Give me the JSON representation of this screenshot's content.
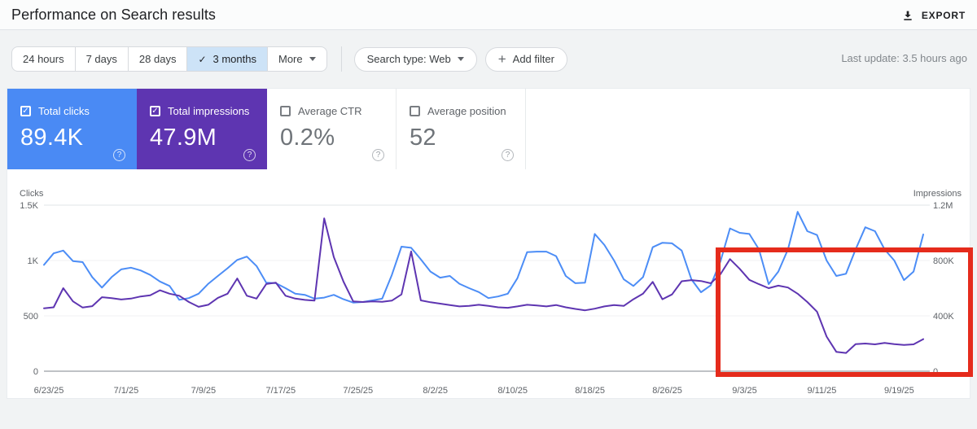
{
  "page": {
    "title": "Performance on Search results"
  },
  "header": {
    "export_label": "EXPORT"
  },
  "icons": {
    "check": "✓",
    "plus": "+",
    "question_mark": "?"
  },
  "toolbar": {
    "date_range_buttons": [
      {
        "label": "24 hours",
        "selected": false
      },
      {
        "label": "7 days",
        "selected": false
      },
      {
        "label": "28 days",
        "selected": false
      },
      {
        "label": "3 months",
        "selected": true
      },
      {
        "label": "More",
        "selected": false
      }
    ],
    "search_type_button": "Search type: Web",
    "add_filter_button": "Add filter",
    "last_update": "Last update: 3.5 hours ago"
  },
  "metric_cards": [
    {
      "label": "Total clicks",
      "value": "89.4K",
      "checked": true,
      "bg": "#4a8af4",
      "text": "#ffffff"
    },
    {
      "label": "Total impressions",
      "value": "47.9M",
      "checked": true,
      "bg": "#5e35b1",
      "text": "#ffffff"
    },
    {
      "label": "Average CTR",
      "value": "0.2%",
      "checked": false,
      "bg": "#ffffff",
      "text": "#6f7479"
    },
    {
      "label": "Average position",
      "value": "52",
      "checked": false,
      "bg": "#ffffff",
      "text": "#6f7479"
    }
  ],
  "chart_data": {
    "type": "line",
    "title": "",
    "grid": true,
    "legend_position": "none",
    "x_tick_labels": [
      "6/23/25",
      "7/1/25",
      "7/9/25",
      "7/17/25",
      "7/25/25",
      "8/2/25",
      "8/10/25",
      "8/18/25",
      "8/26/25",
      "9/3/25",
      "9/11/25",
      "9/19/25"
    ],
    "x_tick_interval_days": 8,
    "points_per_series": 92,
    "left_axis": {
      "title": "Clicks",
      "max": 1500,
      "tick_values": [
        0,
        500,
        1000,
        1500
      ],
      "tick_labels": [
        "0",
        "500",
        "1K",
        "1.5K"
      ]
    },
    "right_axis": {
      "title": "Impressions",
      "max": 1200000,
      "tick_values": [
        0,
        400000,
        800000,
        1200000
      ],
      "tick_labels": [
        "0",
        "400K",
        "800K",
        "1.2M"
      ]
    },
    "series": [
      {
        "name": "Total clicks",
        "axis": "left",
        "color": "#4c8df6",
        "values": [
          960,
          1065,
          1090,
          995,
          985,
          850,
          755,
          850,
          920,
          935,
          910,
          870,
          810,
          770,
          645,
          660,
          700,
          790,
          860,
          930,
          1005,
          1035,
          950,
          800,
          795,
          750,
          700,
          690,
          655,
          665,
          690,
          650,
          620,
          625,
          640,
          655,
          870,
          1125,
          1115,
          1010,
          900,
          845,
          860,
          790,
          750,
          715,
          660,
          675,
          700,
          840,
          1075,
          1080,
          1080,
          1040,
          860,
          795,
          800,
          1240,
          1140,
          1000,
          830,
          770,
          850,
          1120,
          1160,
          1155,
          1090,
          830,
          713,
          775,
          990,
          1290,
          1250,
          1240,
          1100,
          787,
          900,
          1100,
          1440,
          1265,
          1230,
          1000,
          860,
          880,
          1100,
          1300,
          1265,
          1100,
          1000,
          823,
          900,
          1235
        ]
      },
      {
        "name": "Total impressions",
        "axis": "right",
        "color": "#5e35b1",
        "values": [
          455000,
          462000,
          600000,
          505000,
          460000,
          470000,
          535000,
          528000,
          518000,
          525000,
          540000,
          548000,
          585000,
          560000,
          545000,
          500000,
          465000,
          480000,
          530000,
          560000,
          670000,
          545000,
          525000,
          630000,
          640000,
          545000,
          525000,
          515000,
          510000,
          1105000,
          825000,
          647000,
          505000,
          500000,
          505000,
          502000,
          510000,
          555000,
          865000,
          512000,
          498000,
          488000,
          478000,
          468000,
          472000,
          480000,
          472000,
          462000,
          458000,
          468000,
          480000,
          475000,
          468000,
          478000,
          462000,
          450000,
          440000,
          452000,
          468000,
          478000,
          472000,
          520000,
          560000,
          645000,
          520000,
          555000,
          650000,
          658000,
          652000,
          635000,
          700000,
          810000,
          740000,
          660000,
          629000,
          600000,
          618000,
          605000,
          560000,
          500000,
          430000,
          250000,
          140000,
          132000,
          195000,
          200000,
          194000,
          205000,
          195000,
          190000,
          194000,
          232000
        ]
      }
    ],
    "annotation_box": {
      "color": "#e52b1c",
      "day_range": [
        70,
        92
      ],
      "value_range_right_axis": [
        0,
        880000
      ]
    }
  }
}
